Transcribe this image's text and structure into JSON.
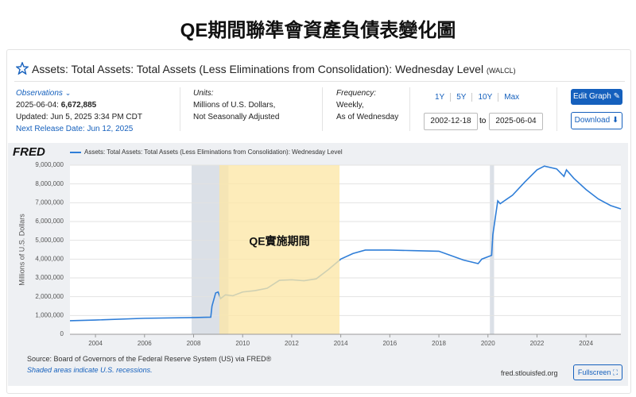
{
  "page_title": "QE期間聯準會資產負債表變化圖",
  "series_header": {
    "title": "Assets: Total Assets: Total Assets (Less Eliminations from Consolidation): Wednesday Level",
    "code": "(WALCL)"
  },
  "meta": {
    "observations": {
      "label": "Observations",
      "date": "2025-06-04:",
      "value": "6,672,885",
      "updated": "Updated: Jun 5, 2025 3:34 PM CDT",
      "next_release": "Next Release Date: Jun 12, 2025"
    },
    "units": {
      "label": "Units:",
      "lines": [
        "Millions of U.S. Dollars,",
        "Not Seasonally Adjusted"
      ]
    },
    "frequency": {
      "label": "Frequency:",
      "lines": [
        "Weekly,",
        "As of Wednesday"
      ]
    },
    "ranges": [
      "1Y",
      "5Y",
      "10Y",
      "Max"
    ],
    "start_date": "2002-12-18",
    "to": "to",
    "end_date": "2025-06-04",
    "buttons": [
      "Edit Graph",
      "Download"
    ]
  },
  "chart_data": {
    "type": "line",
    "logo": "FRED",
    "ylabel": "Millions of U.S. Dollars",
    "series": [
      {
        "name": "Assets: Total Assets: Total Assets (Less Eliminations from Consolidation): Wednesday Level",
        "color": "#2f7ed8",
        "x": [
          2002.96,
          2004,
          2006,
          2008.0,
          2008.7,
          2008.75,
          2008.9,
          2009.0,
          2009.1,
          2009.3,
          2009.6,
          2010.0,
          2010.5,
          2011.0,
          2011.5,
          2012.0,
          2012.5,
          2013.0,
          2013.5,
          2014.0,
          2014.5,
          2015.0,
          2016.0,
          2017.0,
          2018.0,
          2019.0,
          2019.6,
          2019.75,
          2020.15,
          2020.2,
          2020.4,
          2020.5,
          2021.0,
          2021.5,
          2022.0,
          2022.3,
          2022.8,
          2023.1,
          2023.2,
          2023.5,
          2024.0,
          2024.5,
          2025.0,
          2025.42
        ],
        "values": [
          720000,
          760000,
          850000,
          890000,
          910000,
          1500000,
          2200000,
          2250000,
          1900000,
          2100000,
          2050000,
          2250000,
          2320000,
          2450000,
          2870000,
          2900000,
          2850000,
          2950000,
          3450000,
          4000000,
          4300000,
          4480000,
          4480000,
          4450000,
          4420000,
          3950000,
          3760000,
          4000000,
          4200000,
          5300000,
          7100000,
          6950000,
          7400000,
          8100000,
          8750000,
          8950000,
          8800000,
          8400000,
          8750000,
          8300000,
          7700000,
          7200000,
          6850000,
          6672885
        ]
      }
    ],
    "xlim": [
      2002.96,
      2025.42
    ],
    "xticks": [
      2004,
      2006,
      2008,
      2010,
      2012,
      2014,
      2016,
      2018,
      2020,
      2022,
      2024
    ],
    "ylim": [
      0,
      9000000
    ],
    "yticks": [
      0,
      {
        "value": 1000000,
        "label": "1,000,000"
      },
      {
        "value": 2000000,
        "label": "2,000,000"
      },
      {
        "value": 3000000,
        "label": "3,000,000"
      },
      {
        "value": 4000000,
        "label": "4,000,000"
      },
      {
        "value": 5000000,
        "label": "5,000,000"
      },
      {
        "value": 6000000,
        "label": "6,000,000"
      },
      {
        "value": 7000000,
        "label": "7,000,000"
      },
      {
        "value": 8000000,
        "label": "8,000,000"
      },
      {
        "value": 9000000,
        "label": "9,000,000"
      }
    ],
    "grid": true,
    "recessions": [
      [
        2007.92,
        2009.42
      ],
      [
        2020.08,
        2020.25
      ]
    ],
    "annotation": {
      "text": "QE實施期間",
      "x": [
        2009.05,
        2013.95
      ]
    }
  },
  "footer": {
    "source": "Source: Board of Governors of the Federal Reserve System (US) via FRED®",
    "note": "Shaded areas indicate U.S. recessions.",
    "site": "fred.stlouisfed.org",
    "fullscreen": "Fullscreen"
  }
}
